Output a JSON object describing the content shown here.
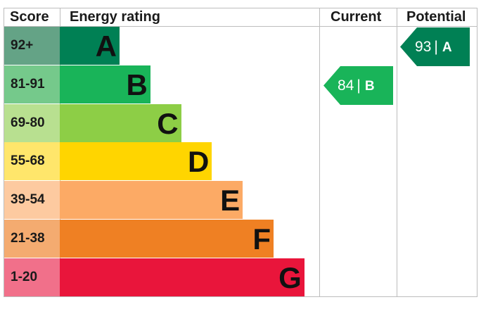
{
  "headers": {
    "score": "Score",
    "energy_rating": "Energy rating",
    "current": "Current",
    "potential": "Potential"
  },
  "bands": [
    {
      "score": "92+",
      "letter": "A",
      "bar_color": "#008054",
      "score_color": "#64a386"
    },
    {
      "score": "81-91",
      "letter": "B",
      "bar_color": "#19b459",
      "score_color": "#75c98b"
    },
    {
      "score": "69-80",
      "letter": "C",
      "bar_color": "#8dce46",
      "score_color": "#b8e090"
    },
    {
      "score": "55-68",
      "letter": "D",
      "bar_color": "#ffd500",
      "score_color": "#ffe66b"
    },
    {
      "score": "39-54",
      "letter": "E",
      "bar_color": "#fcaa65",
      "score_color": "#fdcaa0"
    },
    {
      "score": "21-38",
      "letter": "F",
      "bar_color": "#ef8023",
      "score_color": "#f4ab70"
    },
    {
      "score": "1-20",
      "letter": "G",
      "bar_color": "#e9153b",
      "score_color": "#f1708a"
    }
  ],
  "current": {
    "value": "84",
    "separator": "|",
    "letter": "B",
    "color": "#19b459"
  },
  "potential": {
    "value": "93",
    "separator": "|",
    "letter": "A",
    "color": "#008054"
  },
  "chart_data": {
    "type": "bar",
    "categories": [
      "A",
      "B",
      "C",
      "D",
      "E",
      "F",
      "G"
    ],
    "score_ranges": [
      "92+",
      "81-91",
      "69-80",
      "55-68",
      "39-54",
      "21-38",
      "1-20"
    ],
    "current": {
      "score": 84,
      "band": "B"
    },
    "potential": {
      "score": 93,
      "band": "A"
    }
  }
}
